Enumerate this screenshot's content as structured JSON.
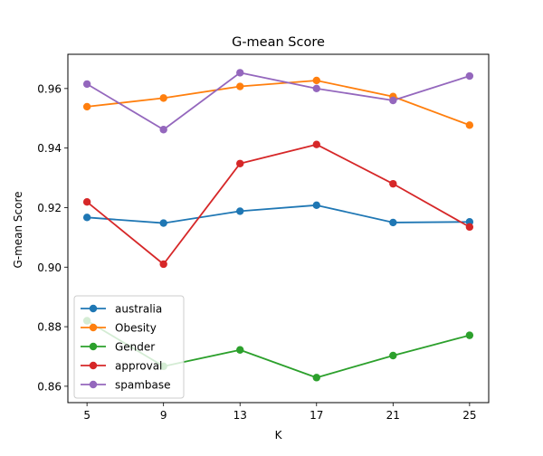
{
  "chart_data": {
    "type": "line",
    "title": "G-mean Score",
    "xlabel": "K",
    "ylabel": "G-mean Score",
    "x": [
      5,
      9,
      13,
      17,
      21,
      25
    ],
    "x_ticks": [
      "5",
      "9",
      "13",
      "17",
      "21",
      "25"
    ],
    "xlim": [
      4,
      26
    ],
    "ylim": [
      0.8545,
      0.9715
    ],
    "y_ticks": [
      0.86,
      0.88,
      0.9,
      0.92,
      0.94,
      0.96
    ],
    "y_tick_labels": [
      "0.86",
      "0.88",
      "0.90",
      "0.92",
      "0.94",
      "0.96"
    ],
    "grid": false,
    "legend_position": "lower-left",
    "marker": "circle",
    "series": [
      {
        "name": "australia",
        "color": "#1f77b4",
        "values": [
          0.9167,
          0.9148,
          0.9188,
          0.9208,
          0.915,
          0.9152
        ]
      },
      {
        "name": "Obesity",
        "color": "#ff7f0e",
        "values": [
          0.9539,
          0.9568,
          0.9607,
          0.9627,
          0.9573,
          0.9477
        ]
      },
      {
        "name": "Gender",
        "color": "#2ca02c",
        "values": [
          0.882,
          0.8667,
          0.8722,
          0.8629,
          0.8703,
          0.8771
        ]
      },
      {
        "name": "approval",
        "color": "#d62728",
        "values": [
          0.9219,
          0.901,
          0.9348,
          0.9412,
          0.928,
          0.9135
        ]
      },
      {
        "name": "spambase",
        "color": "#9467bd",
        "values": [
          0.9615,
          0.9462,
          0.9653,
          0.96,
          0.956,
          0.9642
        ]
      }
    ]
  }
}
